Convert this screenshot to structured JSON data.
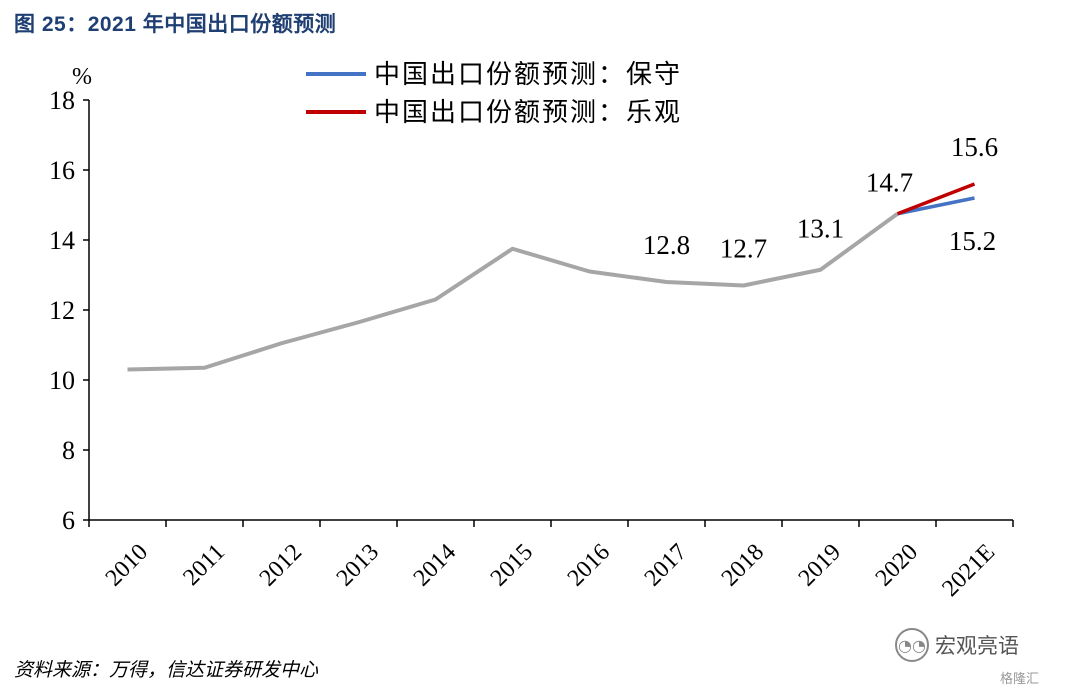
{
  "figure_title": "图 25：2021 年中国出口份额预测",
  "source": "资料来源：万得，信达证券研发中心",
  "watermark": {
    "text": "宏观亮语",
    "sub": "格隆汇"
  },
  "colors": {
    "base": "#a6a6a6",
    "conservative": "#4472c4",
    "optimistic": "#c00000",
    "title": "#1f3f73"
  },
  "chart_data": {
    "type": "line",
    "unit": "%",
    "categories": [
      "2010",
      "2011",
      "2012",
      "2013",
      "2014",
      "2015",
      "2016",
      "2017",
      "2018",
      "2019",
      "2020",
      "2021E"
    ],
    "ylim": [
      6,
      18
    ],
    "yticks": [
      6,
      8,
      10,
      12,
      14,
      16,
      18
    ],
    "grid": false,
    "legend_position": "top",
    "series": [
      {
        "name": "",
        "color": "#a6a6a6",
        "values": [
          10.3,
          10.35,
          11.05,
          11.65,
          12.3,
          13.75,
          13.1,
          12.8,
          12.7,
          13.15,
          14.75,
          null
        ]
      },
      {
        "name": "中国出口份额预测：保守",
        "color": "#4472c4",
        "values": [
          null,
          null,
          null,
          null,
          null,
          null,
          null,
          null,
          null,
          null,
          14.75,
          15.2
        ]
      },
      {
        "name": "中国出口份额预测：乐观",
        "color": "#c00000",
        "values": [
          null,
          null,
          null,
          null,
          null,
          null,
          null,
          null,
          null,
          null,
          14.75,
          15.6
        ]
      }
    ],
    "data_labels": [
      {
        "category": "2017",
        "value": 12.8,
        "text": "12.8"
      },
      {
        "category": "2018",
        "value": 12.7,
        "text": "12.7"
      },
      {
        "category": "2019",
        "value": 13.1,
        "text": "13.1"
      },
      {
        "category": "2020",
        "value": 14.7,
        "text": "14.7"
      },
      {
        "category": "2021E",
        "value": 15.6,
        "text": "15.6"
      },
      {
        "category": "2021E",
        "value": 15.2,
        "text": "15.2"
      }
    ]
  }
}
